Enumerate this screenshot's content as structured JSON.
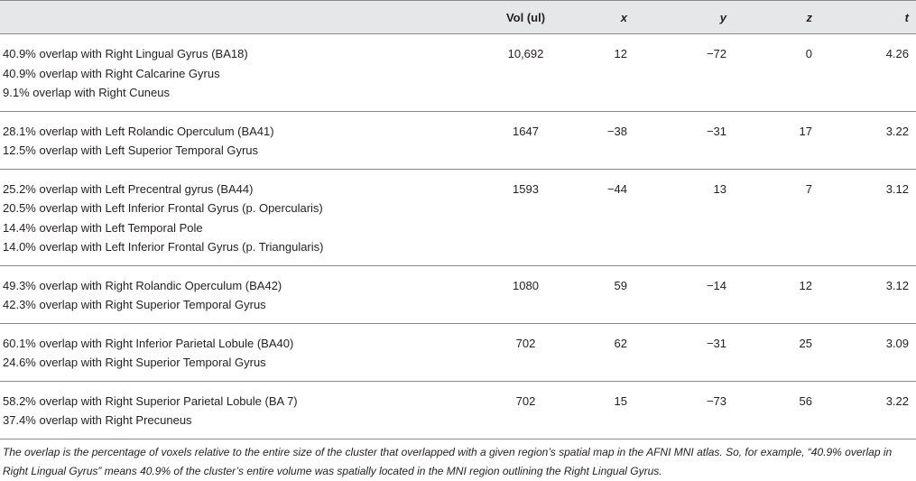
{
  "table": {
    "headers": [
      "",
      "Vol (ul)",
      "x",
      "y",
      "z",
      "t"
    ],
    "rows": [
      {
        "regions": [
          "40.9% overlap with Right Lingual Gyrus (BA18)",
          "40.9% overlap with Right Calcarine Gyrus",
          "9.1% overlap with Right Cuneus"
        ],
        "vol": "10,692",
        "x": "12",
        "y": "−72",
        "z": "0",
        "t": "4.26"
      },
      {
        "regions": [
          "28.1% overlap with Left Rolandic Operculum (BA41)",
          "12.5% overlap with Left Superior Temporal Gyrus"
        ],
        "vol": "1647",
        "x": "−38",
        "y": "−31",
        "z": "17",
        "t": "3.22"
      },
      {
        "regions": [
          "25.2% overlap with Left Precentral gyrus (BA44)",
          "20.5% overlap with Left Inferior Frontal Gyrus (p. Opercularis)",
          "14.4% overlap with Left Temporal Pole",
          "14.0% overlap with Left Inferior Frontal Gyrus (p. Triangularis)"
        ],
        "vol": "1593",
        "x": "−44",
        "y": "13",
        "z": "7",
        "t": "3.12"
      },
      {
        "regions": [
          "49.3% overlap with Right Rolandic Operculum (BA42)",
          "42.3% overlap with Right Superior Temporal Gyrus"
        ],
        "vol": "1080",
        "x": "59",
        "y": "−14",
        "z": "12",
        "t": "3.12"
      },
      {
        "regions": [
          "60.1% overlap with Right Inferior Parietal Lobule (BA40)",
          "24.6% overlap with Right Superior Temporal Gyrus"
        ],
        "vol": "702",
        "x": "62",
        "y": "−31",
        "z": "25",
        "t": "3.09"
      },
      {
        "regions": [
          "58.2% overlap with Right Superior Parietal Lobule (BA 7)",
          "37.4% overlap with Right Precuneus"
        ],
        "vol": "702",
        "x": "15",
        "y": "−73",
        "z": "56",
        "t": "3.22"
      }
    ]
  },
  "footnote": "The overlap is the percentage of voxels relative to the entire size of the cluster that overlapped with a given region’s spatial map in the AFNI MNI atlas. So, for example, “40.9% overlap in Right Lingual Gyrus” means 40.9% of the cluster’s entire volume was spatially located in the MNI region outlining the Right Lingual Gyrus."
}
